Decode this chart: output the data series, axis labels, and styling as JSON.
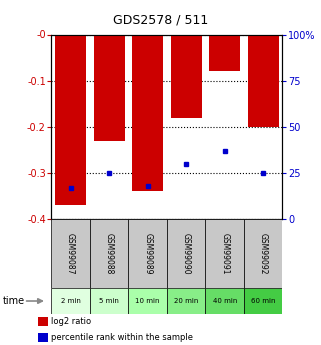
{
  "title": "GDS2578 / 511",
  "categories": [
    "GSM99087",
    "GSM99088",
    "GSM99089",
    "GSM99090",
    "GSM99091",
    "GSM99092"
  ],
  "time_labels": [
    "2 min",
    "5 min",
    "10 min",
    "20 min",
    "40 min",
    "60 min"
  ],
  "log2_ratio": [
    -0.37,
    -0.23,
    -0.34,
    -0.18,
    -0.08,
    -0.2
  ],
  "percentile_rank": [
    17,
    25,
    18,
    30,
    37,
    25
  ],
  "ylim_left": [
    -0.4,
    0.0
  ],
  "ylim_right": [
    0,
    100
  ],
  "left_ticks": [
    0.0,
    -0.1,
    -0.2,
    -0.3,
    -0.4
  ],
  "right_ticks": [
    0,
    25,
    50,
    75,
    100
  ],
  "bar_color": "#cc0000",
  "dot_color": "#0000cc",
  "bg_gray": "#c8c8c8",
  "time_colors": [
    "#e0ffe0",
    "#ccffcc",
    "#aaffaa",
    "#88ee88",
    "#66dd66",
    "#44cc44"
  ],
  "left_tick_color": "#cc0000",
  "right_tick_color": "#0000cc",
  "legend_bar_label": "log2 ratio",
  "legend_dot_label": "percentile rank within the sample",
  "bar_width": 0.8
}
